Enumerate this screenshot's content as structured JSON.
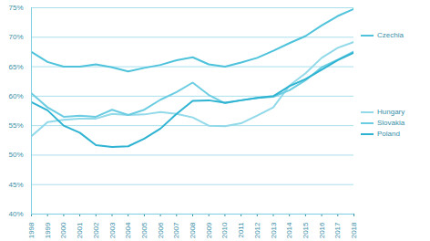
{
  "chart_data": {
    "type": "line",
    "x": [
      1998,
      1999,
      2000,
      2001,
      2002,
      2003,
      2004,
      2005,
      2006,
      2007,
      2008,
      2009,
      2010,
      2011,
      2012,
      2013,
      2014,
      2015,
      2016,
      2017,
      2018
    ],
    "series": [
      {
        "name": "Czechia",
        "color": "#4fc3dc",
        "values": [
          67.5,
          65.8,
          65.0,
          65.0,
          65.4,
          64.9,
          64.2,
          64.8,
          65.3,
          66.1,
          66.6,
          65.4,
          65.0,
          65.7,
          66.5,
          67.7,
          69.0,
          70.2,
          72.0,
          73.6,
          74.8
        ]
      },
      {
        "name": "Hungary",
        "color": "#92d9e9",
        "values": [
          53.2,
          55.6,
          56.0,
          56.2,
          56.2,
          57.0,
          56.8,
          56.9,
          57.3,
          57.0,
          56.4,
          55.0,
          54.9,
          55.4,
          56.7,
          58.1,
          61.8,
          63.9,
          66.5,
          68.2,
          69.2
        ]
      },
      {
        "name": "Slovakia",
        "color": "#6ccde2",
        "values": [
          60.5,
          58.1,
          56.5,
          56.7,
          56.5,
          57.7,
          56.8,
          57.7,
          59.4,
          60.7,
          62.3,
          60.2,
          58.8,
          59.3,
          59.7,
          59.9,
          61.0,
          62.7,
          64.9,
          66.2,
          67.6
        ]
      },
      {
        "name": "Poland",
        "color": "#2fb3d2",
        "values": [
          59.0,
          57.6,
          55.0,
          53.8,
          51.7,
          51.4,
          51.5,
          52.8,
          54.5,
          57.0,
          59.2,
          59.3,
          58.9,
          59.3,
          59.7,
          60.0,
          61.7,
          62.9,
          64.5,
          66.1,
          67.4
        ]
      }
    ],
    "xlim": [
      1998,
      2018
    ],
    "xticks": [
      1998,
      1999,
      2000,
      2001,
      2002,
      2003,
      2004,
      2005,
      2006,
      2007,
      2008,
      2009,
      2010,
      2011,
      2012,
      2013,
      2014,
      2015,
      2016,
      2017,
      2018
    ],
    "ylim": [
      40,
      75
    ],
    "yticks": [
      {
        "value": 40,
        "label": "40%"
      },
      {
        "value": 45,
        "label": "45%"
      },
      {
        "value": 50,
        "label": "50%"
      },
      {
        "value": 55,
        "label": "55%"
      },
      {
        "value": 60,
        "label": "60%"
      },
      {
        "value": 65,
        "label": "65%"
      },
      {
        "value": 70,
        "label": "70%"
      },
      {
        "value": 75,
        "label": "75%"
      }
    ],
    "grid": true,
    "legend": "right"
  }
}
